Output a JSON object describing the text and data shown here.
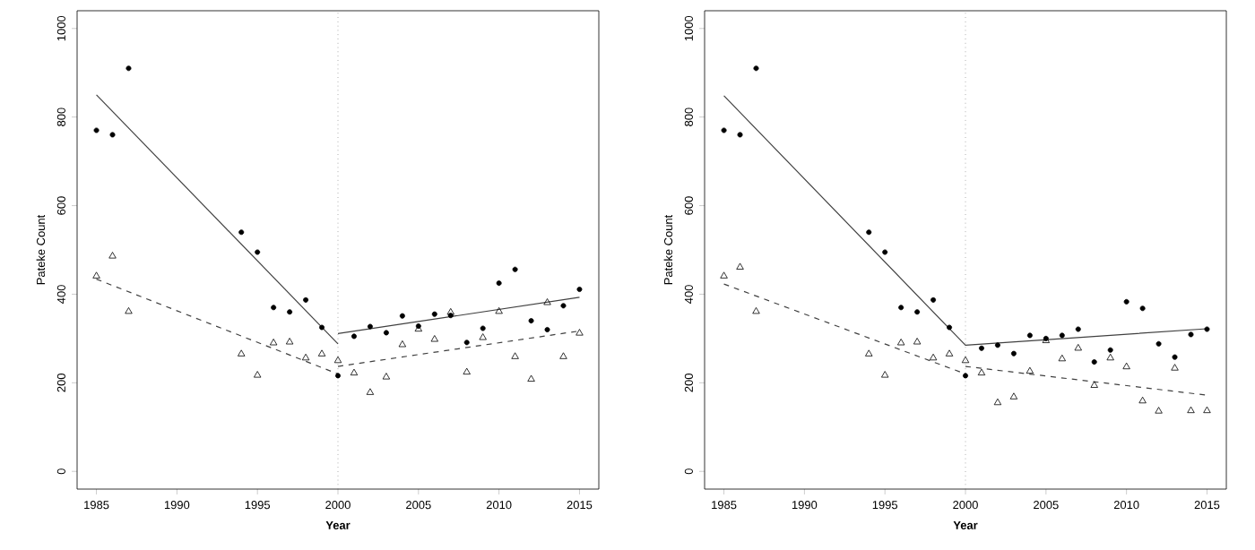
{
  "chart_data": [
    {
      "type": "scatter",
      "xlabel": "Year",
      "ylabel": "Pateke Count",
      "xlim": [
        1983.8,
        2016.2
      ],
      "ylim": [
        -40,
        1040
      ],
      "xticks": [
        1985,
        1990,
        1995,
        2000,
        2005,
        2010,
        2015
      ],
      "yticks": [
        0,
        200,
        400,
        600,
        800,
        1000
      ],
      "ref_lines": [
        {
          "axis": "x",
          "value": 2000,
          "color": "#808080",
          "line_style": "dotted"
        }
      ],
      "series": [
        {
          "marker": "circle",
          "color": "#000000",
          "x": [
            1985,
            1986,
            1987,
            1994,
            1995,
            1996,
            1997,
            1998,
            1999,
            2000,
            2001,
            2002,
            2003,
            2004,
            2005,
            2006,
            2007,
            2008,
            2009,
            2010,
            2011,
            2012,
            2013,
            2014,
            2015
          ],
          "values": [
            770,
            760,
            910,
            540,
            495,
            370,
            360,
            387,
            325,
            216,
            305,
            327,
            313,
            351,
            328,
            355,
            352,
            291,
            323,
            425,
            456,
            340,
            320,
            374,
            411
          ]
        },
        {
          "marker": "triangle",
          "color": "#000000",
          "x": [
            1985,
            1986,
            1987,
            1994,
            1995,
            1996,
            1997,
            1998,
            1999,
            2000,
            2001,
            2002,
            2003,
            2004,
            2005,
            2006,
            2007,
            2008,
            2009,
            2010,
            2011,
            2012,
            2013,
            2014,
            2015
          ],
          "values": [
            441,
            486,
            361,
            265,
            217,
            290,
            292,
            256,
            265,
            250,
            222,
            178,
            213,
            286,
            321,
            298,
            359,
            224,
            302,
            361,
            259,
            208,
            381,
            259,
            312
          ]
        },
        {
          "type": "line",
          "line_style": "solid",
          "color": "#404040",
          "x": [
            1985,
            2000
          ],
          "values": [
            850,
            288
          ]
        },
        {
          "type": "line",
          "line_style": "solid",
          "color": "#404040",
          "x": [
            2000,
            2015
          ],
          "values": [
            311,
            393
          ]
        },
        {
          "type": "line",
          "line_style": "dashed",
          "color": "#404040",
          "x": [
            1985,
            2000
          ],
          "values": [
            434,
            220
          ]
        },
        {
          "type": "line",
          "line_style": "dashed",
          "color": "#404040",
          "x": [
            2000,
            2015
          ],
          "values": [
            237,
            317
          ]
        }
      ]
    },
    {
      "type": "scatter",
      "xlabel": "Year",
      "ylabel": "Pateke Count",
      "xlim": [
        1983.8,
        2016.2
      ],
      "ylim": [
        -40,
        1040
      ],
      "xticks": [
        1985,
        1990,
        1995,
        2000,
        2005,
        2010,
        2015
      ],
      "yticks": [
        0,
        200,
        400,
        600,
        800,
        1000
      ],
      "ref_lines": [
        {
          "axis": "x",
          "value": 2000,
          "color": "#808080",
          "line_style": "dotted"
        }
      ],
      "series": [
        {
          "marker": "circle",
          "color": "#000000",
          "x": [
            1985,
            1986,
            1987,
            1994,
            1995,
            1996,
            1997,
            1998,
            1999,
            2000,
            2001,
            2002,
            2003,
            2004,
            2005,
            2006,
            2007,
            2008,
            2009,
            2010,
            2011,
            2012,
            2013,
            2014,
            2015
          ],
          "values": [
            770,
            760,
            910,
            540,
            495,
            370,
            360,
            387,
            325,
            216,
            278,
            285,
            266,
            307,
            300,
            307,
            321,
            247,
            274,
            383,
            368,
            288,
            258,
            309,
            321
          ]
        },
        {
          "marker": "triangle",
          "color": "#000000",
          "x": [
            1985,
            1986,
            1987,
            1994,
            1995,
            1996,
            1997,
            1998,
            1999,
            2000,
            2001,
            2002,
            2003,
            2004,
            2005,
            2006,
            2007,
            2008,
            2009,
            2010,
            2011,
            2012,
            2013,
            2014,
            2015
          ],
          "values": [
            441,
            461,
            361,
            265,
            217,
            290,
            292,
            256,
            265,
            250,
            222,
            155,
            168,
            226,
            295,
            254,
            278,
            194,
            256,
            236,
            159,
            136,
            233,
            137,
            137
          ]
        },
        {
          "type": "line",
          "line_style": "solid",
          "color": "#404040",
          "x": [
            1985,
            2000,
            2015
          ],
          "values": [
            848,
            285,
            322
          ]
        },
        {
          "type": "line",
          "line_style": "dashed",
          "color": "#404040",
          "x": [
            1985,
            2000
          ],
          "values": [
            423,
            220
          ]
        },
        {
          "type": "line",
          "line_style": "dashed",
          "color": "#404040",
          "x": [
            2000,
            2015
          ],
          "values": [
            237,
            172
          ]
        }
      ]
    }
  ]
}
